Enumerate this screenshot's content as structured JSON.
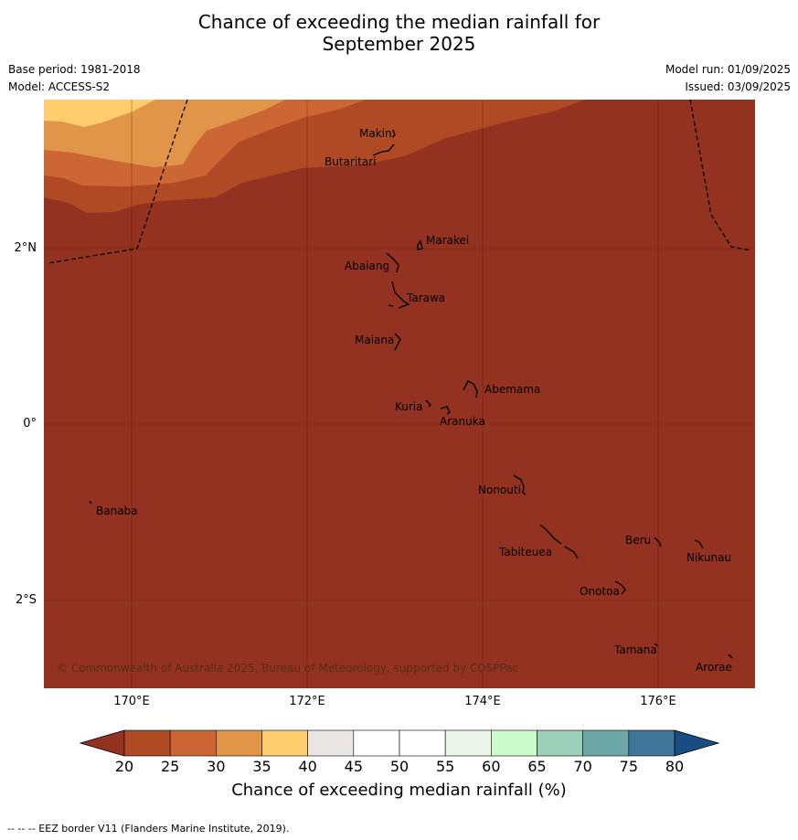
{
  "title_line1": "Chance of exceeding the median rainfall for",
  "title_line2": "September 2025",
  "base_period": "Base period: 1981-2018",
  "model": "Model: ACCESS-S2",
  "model_run": "Model run: 01/09/2025",
  "issued": "Issued: 03/09/2025",
  "axes": {
    "x_ticks": [
      "170°E",
      "172°E",
      "174°E",
      "176°E"
    ],
    "y_ticks": [
      "2°N",
      "0°",
      "2°S"
    ]
  },
  "places": [
    {
      "name": "Makin"
    },
    {
      "name": "Butaritari"
    },
    {
      "name": "Marakei"
    },
    {
      "name": "Abaiang"
    },
    {
      "name": "Tarawa"
    },
    {
      "name": "Maiana"
    },
    {
      "name": "Abemama"
    },
    {
      "name": "Kuria"
    },
    {
      "name": "Aranuka"
    },
    {
      "name": "Nonouti"
    },
    {
      "name": "Banaba"
    },
    {
      "name": "Beru"
    },
    {
      "name": "Nikunau"
    },
    {
      "name": "Tabiteuea"
    },
    {
      "name": "Onotoa"
    },
    {
      "name": "Tamana"
    },
    {
      "name": "Arorae"
    }
  ],
  "copyright": "© Commonwealth of Australia 2025, Bureau of Meteorology, supported by COSPPac",
  "colorbar": {
    "title": "Chance of exceeding median rainfall (%)",
    "labels": [
      "20",
      "25",
      "30",
      "35",
      "40",
      "45",
      "50",
      "55",
      "60",
      "65",
      "70",
      "75",
      "80"
    ],
    "colors": [
      "#b04a25",
      "#cc6634",
      "#e09549",
      "#ffcc6e",
      "#ebe6e3",
      "#ffffff",
      "#ffffff",
      "#ecf5ea",
      "#ccfccc",
      "#9ccfb8",
      "#6ca7a7",
      "#3f7699"
    ],
    "under_color": "#933220",
    "over_color": "#184d83"
  },
  "footnote": "--  --  -- EEZ border V11 (Flanders Marine Institute, 2019)."
}
